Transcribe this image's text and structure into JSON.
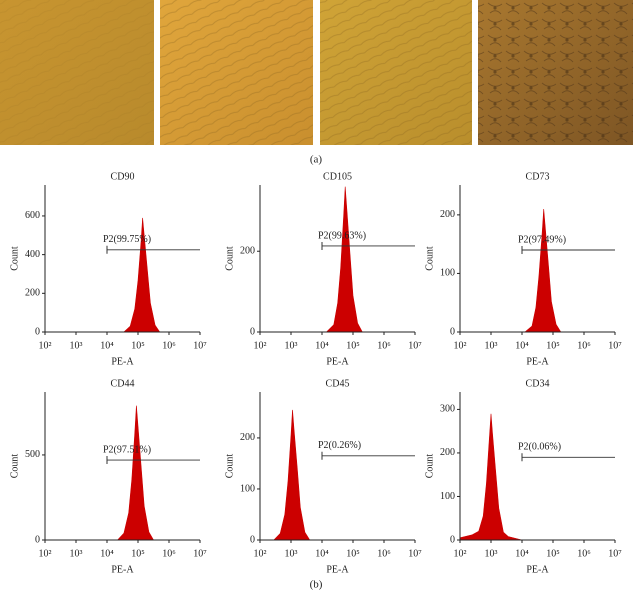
{
  "panel_a": {
    "label": "(a)"
  },
  "panel_b": {
    "label": "(b)"
  },
  "chart_data": [
    {
      "type": "area",
      "title": "CD90",
      "xlabel": "PE-A",
      "ylabel": "Count",
      "xscale": "log",
      "color": "#cc0000",
      "xlim": [
        100,
        10000000
      ],
      "ylim": [
        0,
        760
      ],
      "xticks": [
        {
          "value": 100,
          "label": "10²"
        },
        {
          "value": 1000,
          "label": "10³"
        },
        {
          "value": 10000,
          "label": "10⁴"
        },
        {
          "value": 100000,
          "label": "10⁵"
        },
        {
          "value": 1000000,
          "label": "10⁶"
        },
        {
          "value": 10000000,
          "label": "10⁷"
        }
      ],
      "yticks": [
        0,
        200,
        400,
        600
      ],
      "x": [
        35000,
        56000,
        79000,
        100000,
        126000,
        141000,
        158000,
        200000,
        251000,
        355000,
        501000
      ],
      "values": [
        0,
        30,
        120,
        265,
        470,
        590,
        500,
        325,
        150,
        35,
        0
      ],
      "gate": {
        "label": "P2(99.75%)",
        "from": 10000,
        "to": 10000000,
        "level": 425
      }
    },
    {
      "type": "area",
      "title": "CD105",
      "xlabel": "PE-A",
      "ylabel": "Count",
      "xscale": "log",
      "color": "#cc0000",
      "xlim": [
        100,
        10000000
      ],
      "ylim": [
        0,
        364
      ],
      "xticks": [
        {
          "value": 100,
          "label": "10²"
        },
        {
          "value": 1000,
          "label": "10³"
        },
        {
          "value": 10000,
          "label": "10⁴"
        },
        {
          "value": 100000,
          "label": "10⁵"
        },
        {
          "value": 1000000,
          "label": "10⁶"
        },
        {
          "value": 10000000,
          "label": "10⁷"
        }
      ],
      "yticks": [
        0,
        200
      ],
      "x": [
        14000,
        24000,
        32000,
        40000,
        50000,
        56000,
        63000,
        79000,
        100000,
        141000,
        200000
      ],
      "values": [
        0,
        18,
        72,
        160,
        290,
        360,
        305,
        200,
        90,
        22,
        0
      ],
      "gate": {
        "label": "P2(99.63%)",
        "from": 10000,
        "to": 10000000,
        "level": 213
      }
    },
    {
      "type": "area",
      "title": "CD73",
      "xlabel": "PE-A",
      "ylabel": "Count",
      "xscale": "log",
      "color": "#cc0000",
      "xlim": [
        100,
        10000000
      ],
      "ylim": [
        0,
        251
      ],
      "xticks": [
        {
          "value": 100,
          "label": "10²"
        },
        {
          "value": 1000,
          "label": "10³"
        },
        {
          "value": 10000,
          "label": "10⁴"
        },
        {
          "value": 100000,
          "label": "10⁵"
        },
        {
          "value": 1000000,
          "label": "10⁶"
        },
        {
          "value": 10000000,
          "label": "10⁷"
        }
      ],
      "yticks": [
        0,
        100,
        200
      ],
      "x": [
        12500,
        21000,
        28000,
        35000,
        45000,
        50000,
        56000,
        71000,
        89000,
        126000,
        178000
      ],
      "values": [
        0,
        10,
        42,
        95,
        170,
        210,
        180,
        115,
        52,
        13,
        0
      ],
      "gate": {
        "label": "P2(97.49%)",
        "from": 10000,
        "to": 10000000,
        "level": 140
      }
    },
    {
      "type": "area",
      "title": "CD44",
      "xlabel": "PE-A",
      "ylabel": "Count",
      "xscale": "log",
      "color": "#cc0000",
      "xlim": [
        100,
        10000000
      ],
      "ylim": [
        0,
        870
      ],
      "xticks": [
        {
          "value": 100,
          "label": "10²"
        },
        {
          "value": 1000,
          "label": "10³"
        },
        {
          "value": 10000,
          "label": "10⁴"
        },
        {
          "value": 100000,
          "label": "10⁵"
        },
        {
          "value": 1000000,
          "label": "10⁶"
        },
        {
          "value": 10000000,
          "label": "10⁷"
        }
      ],
      "yticks": [
        0,
        500
      ],
      "x": [
        22000,
        35000,
        50000,
        63000,
        79000,
        89000,
        100000,
        126000,
        158000,
        224000,
        316000
      ],
      "values": [
        0,
        40,
        160,
        355,
        630,
        790,
        670,
        435,
        200,
        47,
        0
      ],
      "gate": {
        "label": "P2(97.51%)",
        "from": 10000,
        "to": 10000000,
        "level": 470
      }
    },
    {
      "type": "area",
      "title": "CD45",
      "xlabel": "PE-A",
      "ylabel": "Count",
      "xscale": "log",
      "color": "#cc0000",
      "xlim": [
        100,
        10000000
      ],
      "ylim": [
        0,
        290
      ],
      "xticks": [
        {
          "value": 100,
          "label": "10²"
        },
        {
          "value": 1000,
          "label": "10³"
        },
        {
          "value": 10000,
          "label": "10⁴"
        },
        {
          "value": 100000,
          "label": "10⁵"
        },
        {
          "value": 1000000,
          "label": "10⁶"
        },
        {
          "value": 10000000,
          "label": "10⁷"
        }
      ],
      "yticks": [
        0,
        100,
        200
      ],
      "x": [
        280,
        450,
        630,
        800,
        1000,
        1120,
        1260,
        1600,
        2000,
        2800,
        4000
      ],
      "values": [
        0,
        13,
        50,
        115,
        205,
        255,
        215,
        140,
        64,
        15,
        0
      ],
      "gate": {
        "label": "P2(0.26%)",
        "from": 10000,
        "to": 10000000,
        "level": 165
      }
    },
    {
      "type": "area",
      "title": "CD34",
      "xlabel": "PE-A",
      "ylabel": "Count",
      "xscale": "log",
      "color": "#cc0000",
      "xlim": [
        100,
        10000000
      ],
      "ylim": [
        0,
        340
      ],
      "xticks": [
        {
          "value": 100,
          "label": "10²"
        },
        {
          "value": 1000,
          "label": "10³"
        },
        {
          "value": 10000,
          "label": "10⁴"
        },
        {
          "value": 100000,
          "label": "10⁵"
        },
        {
          "value": 1000000,
          "label": "10⁶"
        },
        {
          "value": 10000000,
          "label": "10⁷"
        }
      ],
      "yticks": [
        0,
        100,
        200,
        300
      ],
      "x": [
        100,
        250,
        400,
        560,
        710,
        890,
        1000,
        1120,
        1410,
        1780,
        2510,
        3550,
        10000
      ],
      "values": [
        5,
        12,
        20,
        55,
        130,
        235,
        290,
        245,
        160,
        73,
        18,
        8,
        0
      ],
      "gate": {
        "label": "P2(0.06%)",
        "from": 10000,
        "to": 10000000,
        "level": 190
      }
    }
  ]
}
